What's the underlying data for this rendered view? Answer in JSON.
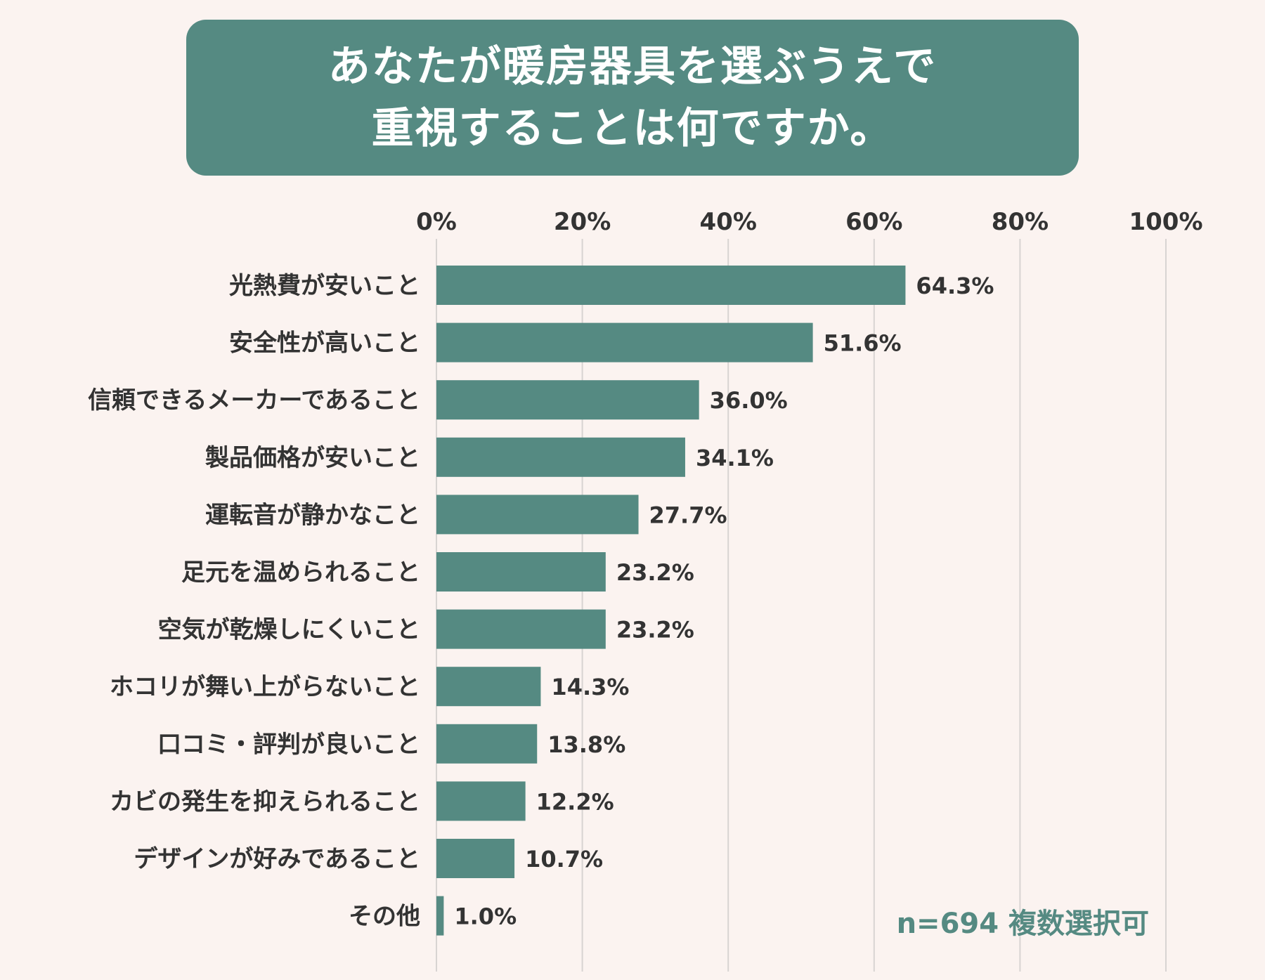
{
  "colors": {
    "accent": "#558a82",
    "background": "#fbf3f0",
    "text": "#333333",
    "grid": "#d8d4d2"
  },
  "chart_data": {
    "type": "bar",
    "orientation": "horizontal",
    "title_lines": [
      "あなたが暖房器具を選ぶうえで",
      "重視することは何ですか。"
    ],
    "categories": [
      "光熱費が安いこと",
      "安全性が高いこと",
      "信頼できるメーカーであること",
      "製品価格が安いこと",
      "運転音が静かなこと",
      "足元を温められること",
      "空気が乾燥しにくいこと",
      "ホコリが舞い上がらないこと",
      "口コミ・評判が良いこと",
      "カビの発生を抑えられること",
      "デザインが好みであること",
      "その他"
    ],
    "values": [
      64.3,
      51.6,
      36.0,
      34.1,
      27.7,
      23.2,
      23.2,
      14.3,
      13.8,
      12.2,
      10.7,
      1.0
    ],
    "value_labels": [
      "64.3%",
      "51.6%",
      "36.0%",
      "34.1%",
      "27.7%",
      "23.2%",
      "23.2%",
      "14.3%",
      "13.8%",
      "12.2%",
      "10.7%",
      "1.0%"
    ],
    "xlim": [
      0,
      100
    ],
    "x_ticks": [
      0,
      20,
      40,
      60,
      80,
      100
    ],
    "x_tick_labels": [
      "0%",
      "20%",
      "40%",
      "60%",
      "80%",
      "100%"
    ],
    "x_axis_position": "top",
    "grid": true,
    "note": "n=694 複数選択可"
  }
}
